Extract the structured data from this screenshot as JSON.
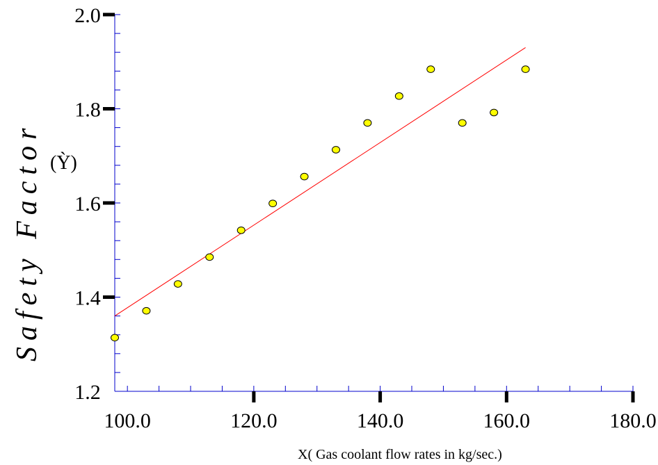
{
  "chart_data": {
    "type": "scatter",
    "xlabel": "X( Gas coolant flow rates in kg/sec.)",
    "ylabel": "Safety Factor",
    "ylabel_sub": "(Ỳ)",
    "xlim": [
      98,
      180
    ],
    "ylim": [
      1.2,
      2.0
    ],
    "x_ticks": [
      100,
      120,
      140,
      160,
      180
    ],
    "x_tick_labels": [
      "100.0",
      "120.0",
      "140.0",
      "160.0",
      "180.0"
    ],
    "y_ticks": [
      1.2,
      1.4,
      1.6,
      1.8,
      2.0
    ],
    "y_tick_labels": [
      "1.2",
      "1.4",
      "1.6",
      "1.8",
      "2.0"
    ],
    "grid": false,
    "points": [
      {
        "x": 98,
        "y": 1.314
      },
      {
        "x": 103,
        "y": 1.371
      },
      {
        "x": 108,
        "y": 1.428
      },
      {
        "x": 113,
        "y": 1.485
      },
      {
        "x": 118,
        "y": 1.542
      },
      {
        "x": 123,
        "y": 1.599
      },
      {
        "x": 128,
        "y": 1.656
      },
      {
        "x": 133,
        "y": 1.713
      },
      {
        "x": 138,
        "y": 1.77
      },
      {
        "x": 143,
        "y": 1.827
      },
      {
        "x": 148,
        "y": 1.884
      },
      {
        "x": 153,
        "y": 1.77
      },
      {
        "x": 158,
        "y": 1.792
      },
      {
        "x": 163,
        "y": 1.884
      }
    ],
    "fit_line": {
      "x": [
        98,
        163
      ],
      "y": [
        1.36,
        1.93
      ]
    },
    "colors": {
      "marker_fill": "#ffff00",
      "marker_edge": "#000000",
      "fit_line": "#ff0000",
      "axis": "#0000cc",
      "major_tick": "#000000"
    }
  }
}
